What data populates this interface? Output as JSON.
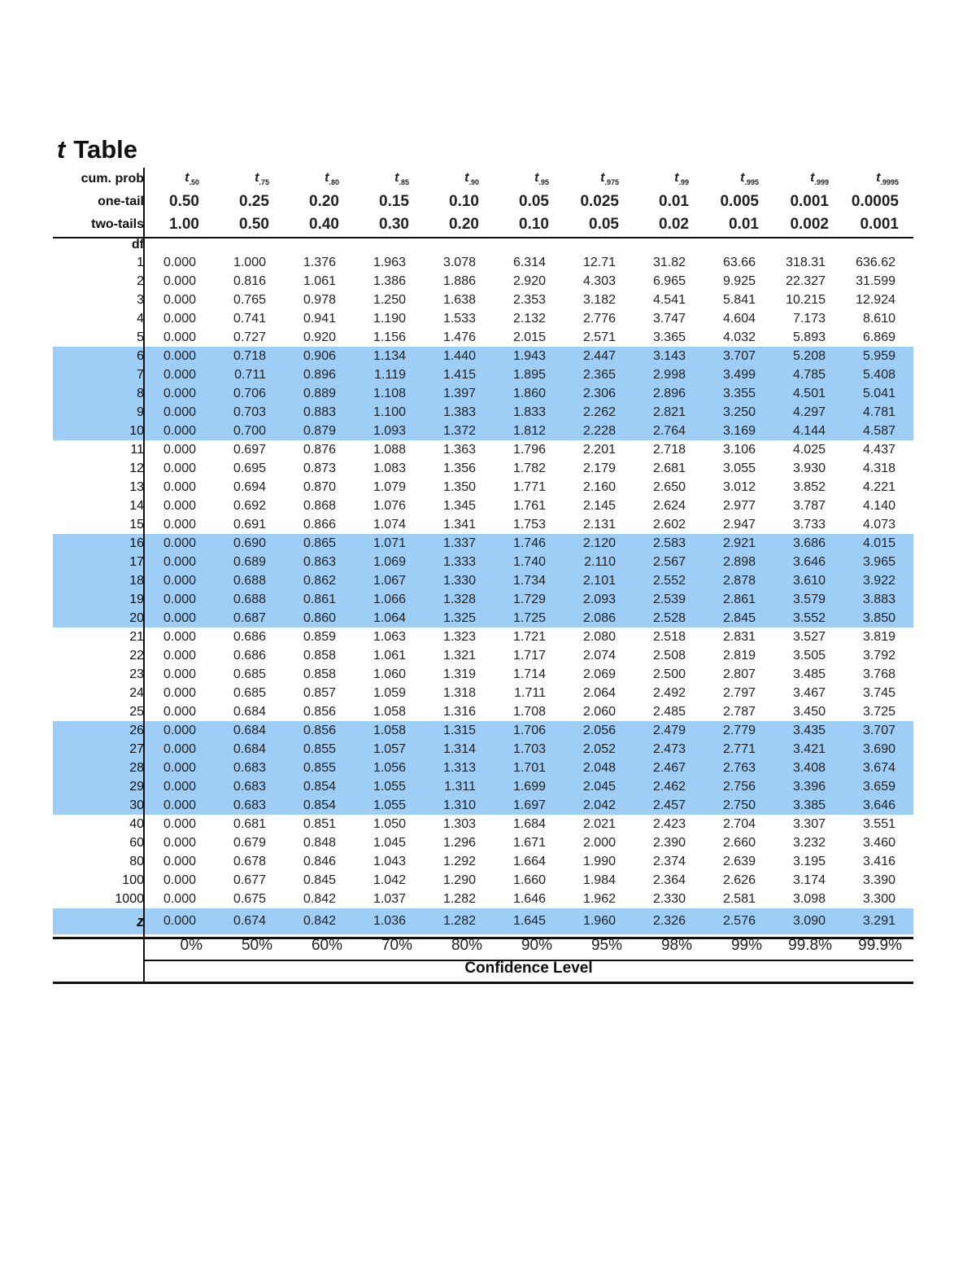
{
  "title": {
    "italic": "t",
    "text": "Table"
  },
  "header": {
    "cum_label": "cum. prob",
    "one_label": "one-tail",
    "two_label": "two-tails",
    "df_label": "df",
    "cum": [
      ".50",
      ".75",
      ".80",
      ".85",
      ".90",
      ".95",
      ".975",
      ".99",
      ".995",
      ".999",
      ".9995"
    ],
    "cum_symbol": "t",
    "one": [
      "0.50",
      "0.25",
      "0.20",
      "0.15",
      "0.10",
      "0.05",
      "0.025",
      "0.01",
      "0.005",
      "0.001",
      "0.0005"
    ],
    "two": [
      "1.00",
      "0.50",
      "0.40",
      "0.30",
      "0.20",
      "0.10",
      "0.05",
      "0.02",
      "0.01",
      "0.002",
      "0.001"
    ]
  },
  "highlight_color": "#9ecdf6",
  "rows": [
    {
      "df": "1",
      "v": [
        "0.000",
        "1.000",
        "1.376",
        "1.963",
        "3.078",
        "6.314",
        "12.71",
        "31.82",
        "63.66",
        "318.31",
        "636.62"
      ]
    },
    {
      "df": "2",
      "v": [
        "0.000",
        "0.816",
        "1.061",
        "1.386",
        "1.886",
        "2.920",
        "4.303",
        "6.965",
        "9.925",
        "22.327",
        "31.599"
      ]
    },
    {
      "df": "3",
      "v": [
        "0.000",
        "0.765",
        "0.978",
        "1.250",
        "1.638",
        "2.353",
        "3.182",
        "4.541",
        "5.841",
        "10.215",
        "12.924"
      ]
    },
    {
      "df": "4",
      "v": [
        "0.000",
        "0.741",
        "0.941",
        "1.190",
        "1.533",
        "2.132",
        "2.776",
        "3.747",
        "4.604",
        "7.173",
        "8.610"
      ]
    },
    {
      "df": "5",
      "v": [
        "0.000",
        "0.727",
        "0.920",
        "1.156",
        "1.476",
        "2.015",
        "2.571",
        "3.365",
        "4.032",
        "5.893",
        "6.869"
      ]
    },
    {
      "df": "6",
      "v": [
        "0.000",
        "0.718",
        "0.906",
        "1.134",
        "1.440",
        "1.943",
        "2.447",
        "3.143",
        "3.707",
        "5.208",
        "5.959"
      ],
      "hl": true
    },
    {
      "df": "7",
      "v": [
        "0.000",
        "0.711",
        "0.896",
        "1.119",
        "1.415",
        "1.895",
        "2.365",
        "2.998",
        "3.499",
        "4.785",
        "5.408"
      ],
      "hl": true
    },
    {
      "df": "8",
      "v": [
        "0.000",
        "0.706",
        "0.889",
        "1.108",
        "1.397",
        "1.860",
        "2.306",
        "2.896",
        "3.355",
        "4.501",
        "5.041"
      ],
      "hl": true
    },
    {
      "df": "9",
      "v": [
        "0.000",
        "0.703",
        "0.883",
        "1.100",
        "1.383",
        "1.833",
        "2.262",
        "2.821",
        "3.250",
        "4.297",
        "4.781"
      ],
      "hl": true
    },
    {
      "df": "10",
      "v": [
        "0.000",
        "0.700",
        "0.879",
        "1.093",
        "1.372",
        "1.812",
        "2.228",
        "2.764",
        "3.169",
        "4.144",
        "4.587"
      ],
      "hl": true
    },
    {
      "df": "11",
      "v": [
        "0.000",
        "0.697",
        "0.876",
        "1.088",
        "1.363",
        "1.796",
        "2.201",
        "2.718",
        "3.106",
        "4.025",
        "4.437"
      ]
    },
    {
      "df": "12",
      "v": [
        "0.000",
        "0.695",
        "0.873",
        "1.083",
        "1.356",
        "1.782",
        "2.179",
        "2.681",
        "3.055",
        "3.930",
        "4.318"
      ]
    },
    {
      "df": "13",
      "v": [
        "0.000",
        "0.694",
        "0.870",
        "1.079",
        "1.350",
        "1.771",
        "2.160",
        "2.650",
        "3.012",
        "3.852",
        "4.221"
      ]
    },
    {
      "df": "14",
      "v": [
        "0.000",
        "0.692",
        "0.868",
        "1.076",
        "1.345",
        "1.761",
        "2.145",
        "2.624",
        "2.977",
        "3.787",
        "4.140"
      ]
    },
    {
      "df": "15",
      "v": [
        "0.000",
        "0.691",
        "0.866",
        "1.074",
        "1.341",
        "1.753",
        "2.131",
        "2.602",
        "2.947",
        "3.733",
        "4.073"
      ]
    },
    {
      "df": "16",
      "v": [
        "0.000",
        "0.690",
        "0.865",
        "1.071",
        "1.337",
        "1.746",
        "2.120",
        "2.583",
        "2.921",
        "3.686",
        "4.015"
      ],
      "hl": true
    },
    {
      "df": "17",
      "v": [
        "0.000",
        "0.689",
        "0.863",
        "1.069",
        "1.333",
        "1.740",
        "2.110",
        "2.567",
        "2.898",
        "3.646",
        "3.965"
      ],
      "hl": true
    },
    {
      "df": "18",
      "v": [
        "0.000",
        "0.688",
        "0.862",
        "1.067",
        "1.330",
        "1.734",
        "2.101",
        "2.552",
        "2.878",
        "3.610",
        "3.922"
      ],
      "hl": true
    },
    {
      "df": "19",
      "v": [
        "0.000",
        "0.688",
        "0.861",
        "1.066",
        "1.328",
        "1.729",
        "2.093",
        "2.539",
        "2.861",
        "3.579",
        "3.883"
      ],
      "hl": true
    },
    {
      "df": "20",
      "v": [
        "0.000",
        "0.687",
        "0.860",
        "1.064",
        "1.325",
        "1.725",
        "2.086",
        "2.528",
        "2.845",
        "3.552",
        "3.850"
      ],
      "hl": true
    },
    {
      "df": "21",
      "v": [
        "0.000",
        "0.686",
        "0.859",
        "1.063",
        "1.323",
        "1.721",
        "2.080",
        "2.518",
        "2.831",
        "3.527",
        "3.819"
      ]
    },
    {
      "df": "22",
      "v": [
        "0.000",
        "0.686",
        "0.858",
        "1.061",
        "1.321",
        "1.717",
        "2.074",
        "2.508",
        "2.819",
        "3.505",
        "3.792"
      ]
    },
    {
      "df": "23",
      "v": [
        "0.000",
        "0.685",
        "0.858",
        "1.060",
        "1.319",
        "1.714",
        "2.069",
        "2.500",
        "2.807",
        "3.485",
        "3.768"
      ]
    },
    {
      "df": "24",
      "v": [
        "0.000",
        "0.685",
        "0.857",
        "1.059",
        "1.318",
        "1.711",
        "2.064",
        "2.492",
        "2.797",
        "3.467",
        "3.745"
      ]
    },
    {
      "df": "25",
      "v": [
        "0.000",
        "0.684",
        "0.856",
        "1.058",
        "1.316",
        "1.708",
        "2.060",
        "2.485",
        "2.787",
        "3.450",
        "3.725"
      ]
    },
    {
      "df": "26",
      "v": [
        "0.000",
        "0.684",
        "0.856",
        "1.058",
        "1.315",
        "1.706",
        "2.056",
        "2.479",
        "2.779",
        "3.435",
        "3.707"
      ],
      "hl": true
    },
    {
      "df": "27",
      "v": [
        "0.000",
        "0.684",
        "0.855",
        "1.057",
        "1.314",
        "1.703",
        "2.052",
        "2.473",
        "2.771",
        "3.421",
        "3.690"
      ],
      "hl": true
    },
    {
      "df": "28",
      "v": [
        "0.000",
        "0.683",
        "0.855",
        "1.056",
        "1.313",
        "1.701",
        "2.048",
        "2.467",
        "2.763",
        "3.408",
        "3.674"
      ],
      "hl": true
    },
    {
      "df": "29",
      "v": [
        "0.000",
        "0.683",
        "0.854",
        "1.055",
        "1.311",
        "1.699",
        "2.045",
        "2.462",
        "2.756",
        "3.396",
        "3.659"
      ],
      "hl": true
    },
    {
      "df": "30",
      "v": [
        "0.000",
        "0.683",
        "0.854",
        "1.055",
        "1.310",
        "1.697",
        "2.042",
        "2.457",
        "2.750",
        "3.385",
        "3.646"
      ],
      "hl": true
    },
    {
      "df": "40",
      "v": [
        "0.000",
        "0.681",
        "0.851",
        "1.050",
        "1.303",
        "1.684",
        "2.021",
        "2.423",
        "2.704",
        "3.307",
        "3.551"
      ]
    },
    {
      "df": "60",
      "v": [
        "0.000",
        "0.679",
        "0.848",
        "1.045",
        "1.296",
        "1.671",
        "2.000",
        "2.390",
        "2.660",
        "3.232",
        "3.460"
      ]
    },
    {
      "df": "80",
      "v": [
        "0.000",
        "0.678",
        "0.846",
        "1.043",
        "1.292",
        "1.664",
        "1.990",
        "2.374",
        "2.639",
        "3.195",
        "3.416"
      ]
    },
    {
      "df": "100",
      "v": [
        "0.000",
        "0.677",
        "0.845",
        "1.042",
        "1.290",
        "1.660",
        "1.984",
        "2.364",
        "2.626",
        "3.174",
        "3.390"
      ]
    },
    {
      "df": "1000",
      "v": [
        "0.000",
        "0.675",
        "0.842",
        "1.037",
        "1.282",
        "1.646",
        "1.962",
        "2.330",
        "2.581",
        "3.098",
        "3.300"
      ]
    }
  ],
  "z": {
    "label": "z",
    "v": [
      "0.000",
      "0.674",
      "0.842",
      "1.036",
      "1.282",
      "1.645",
      "1.960",
      "2.326",
      "2.576",
      "3.090",
      "3.291"
    ]
  },
  "confidence": {
    "v": [
      "0%",
      "50%",
      "60%",
      "70%",
      "80%",
      "90%",
      "95%",
      "98%",
      "99%",
      "99.8%",
      "99.9%"
    ],
    "label": "Confidence Level"
  }
}
